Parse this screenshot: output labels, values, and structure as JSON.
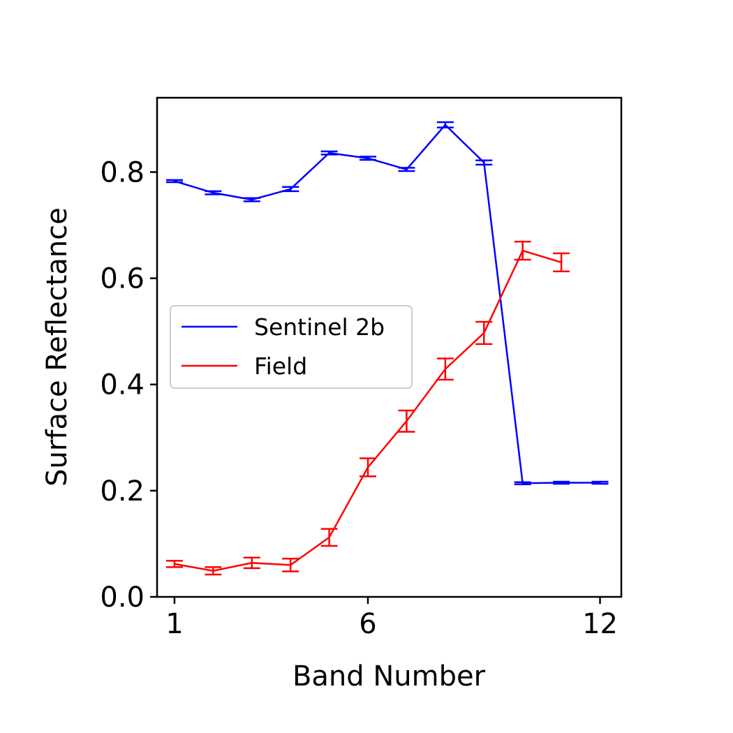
{
  "chart_data": {
    "type": "line",
    "xlabel": "Band Number",
    "ylabel": "Surface Reflectance",
    "xlim": [
      0.55,
      12.55
    ],
    "ylim": [
      0.0,
      0.94
    ],
    "xticks": [
      1,
      6,
      12
    ],
    "xtick_labels": [
      "1",
      "6",
      "12"
    ],
    "yticks": [
      0.0,
      0.2,
      0.4,
      0.6,
      0.8
    ],
    "ytick_labels": [
      "0.0",
      "0.2",
      "0.4",
      "0.6",
      "0.8"
    ],
    "grid": false,
    "legend": "center-left",
    "x": [
      1,
      2,
      3,
      4,
      5,
      6,
      7,
      8,
      9,
      10,
      11,
      12
    ],
    "series": [
      {
        "name": "Sentinel 2b",
        "color": "#0000ff",
        "values": [
          0.783,
          0.761,
          0.748,
          0.768,
          0.836,
          0.826,
          0.805,
          0.889,
          0.818,
          0.214,
          0.215,
          0.215
        ],
        "errors": [
          0.002,
          0.003,
          0.003,
          0.004,
          0.003,
          0.003,
          0.003,
          0.005,
          0.004,
          0.002,
          0.002,
          0.002
        ]
      },
      {
        "name": "Field",
        "color": "#ff0000",
        "values": [
          0.062,
          0.049,
          0.064,
          0.06,
          0.112,
          0.244,
          0.331,
          0.429,
          0.497,
          0.652,
          0.63,
          null
        ],
        "errors": [
          0.006,
          0.007,
          0.01,
          0.012,
          0.016,
          0.017,
          0.02,
          0.02,
          0.021,
          0.017,
          0.017,
          null
        ]
      }
    ]
  }
}
